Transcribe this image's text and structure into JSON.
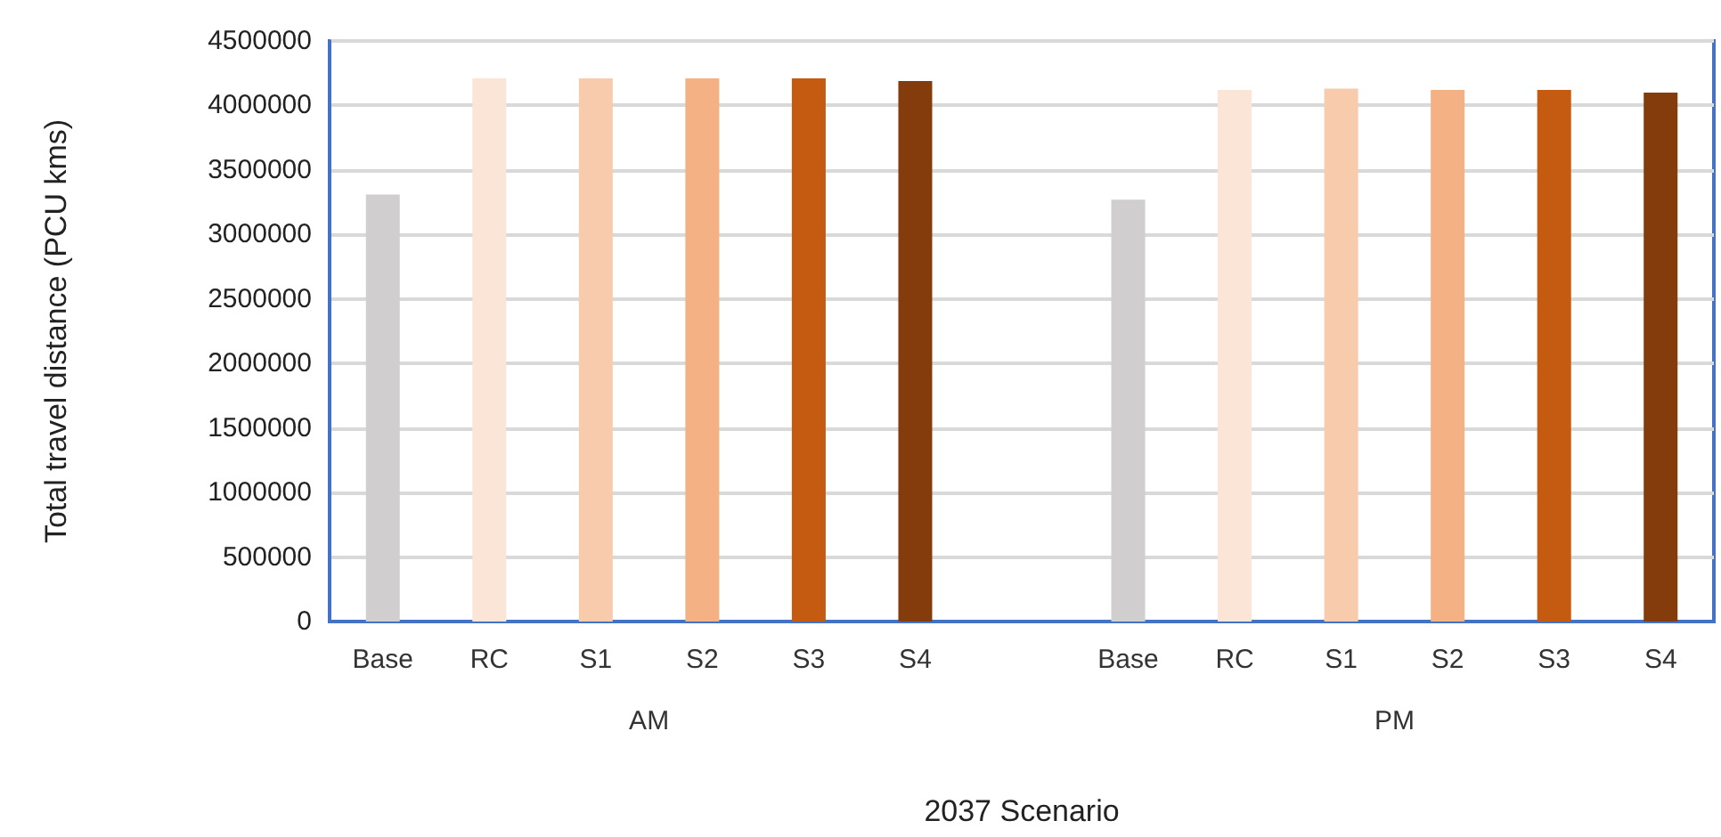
{
  "chart_data": {
    "type": "bar",
    "xlabel": "2037 Scenario",
    "ylabel": "Total travel distance (PCU kms)",
    "categories": [
      "Base",
      "RC",
      "S1",
      "S2",
      "S3",
      "S4",
      null,
      "Base",
      "RC",
      "S1",
      "S2",
      "S3",
      "S4"
    ],
    "values": [
      3310000,
      4210000,
      4210000,
      4210000,
      4210000,
      4190000,
      null,
      3270000,
      4120000,
      4130000,
      4120000,
      4120000,
      4100000
    ],
    "colors": [
      "#d0cece",
      "#fbe5d6",
      "#f8cbad",
      "#f4b183",
      "#c55a11",
      "#843c0c",
      null,
      "#d0cece",
      "#fbe5d6",
      "#f8cbad",
      "#f4b183",
      "#c55a11",
      "#843c0c"
    ],
    "annotations": [
      "AM",
      "PM"
    ],
    "ylim": [
      0,
      4500000
    ],
    "yticks": [
      0,
      500000,
      1000000,
      1500000,
      2000000,
      2500000,
      3000000,
      3500000,
      4000000,
      4500000
    ],
    "grid": "y"
  }
}
